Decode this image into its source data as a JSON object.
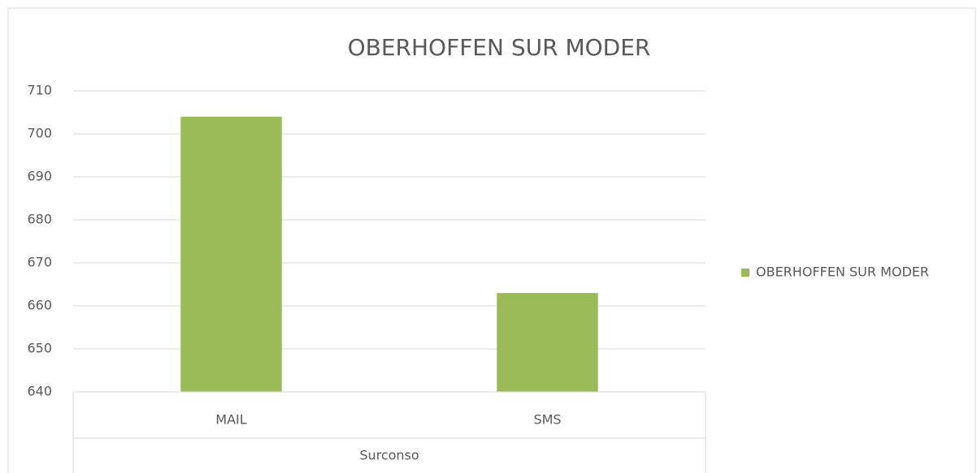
{
  "chart_data": {
    "type": "bar",
    "title": "OBERHOFFEN SUR MODER",
    "categories": [
      "MAIL",
      "SMS"
    ],
    "series": [
      {
        "name": "OBERHOFFEN SUR MODER",
        "color": "#9bbb59",
        "values": [
          704,
          663
        ]
      }
    ],
    "xlabel": "Surconso",
    "ylim": [
      640,
      710
    ],
    "yticks": [
      640,
      650,
      660,
      670,
      680,
      690,
      700,
      710
    ],
    "grid": true,
    "legend": "right"
  }
}
